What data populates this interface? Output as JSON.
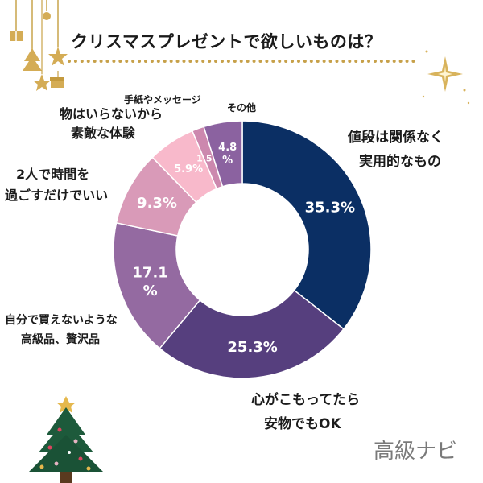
{
  "title": "クリスマスプレゼントで欲しいものは？",
  "brand": "高級ナビ",
  "chart_data": {
    "type": "pie",
    "donut": true,
    "title": "クリスマスプレゼントで欲しいものは？",
    "slices": [
      {
        "label_lines": [
          "値段は関係なく",
          "実用的なもの"
        ],
        "value": 35.3,
        "display": "35.3%",
        "color": "#0b2f64"
      },
      {
        "label_lines": [
          "心がこもってたら",
          "安物でもOK"
        ],
        "value": 25.3,
        "display": "25.3%",
        "color": "#563f7e"
      },
      {
        "label_lines": [
          "自分で買えないような",
          "高級品、贅沢品"
        ],
        "value": 17.1,
        "display": "17.1\n%",
        "color": "#946aa1"
      },
      {
        "label_lines": [
          "2人で時間を",
          "過ごすだけでいい"
        ],
        "value": 9.3,
        "display": "9.3%",
        "color": "#d99ab8"
      },
      {
        "label_lines": [
          "物はいらないから",
          "素敵な体験"
        ],
        "value": 5.9,
        "display": "5.9%",
        "color": "#f8b9cb"
      },
      {
        "label_lines": [
          "手紙やメッセージ"
        ],
        "value": 1.5,
        "display": "1.5%",
        "color": "#cc88ae"
      },
      {
        "label_lines": [
          "その他"
        ],
        "value": 4.8,
        "display": "4.8\n%",
        "color": "#8b62a0"
      }
    ]
  }
}
